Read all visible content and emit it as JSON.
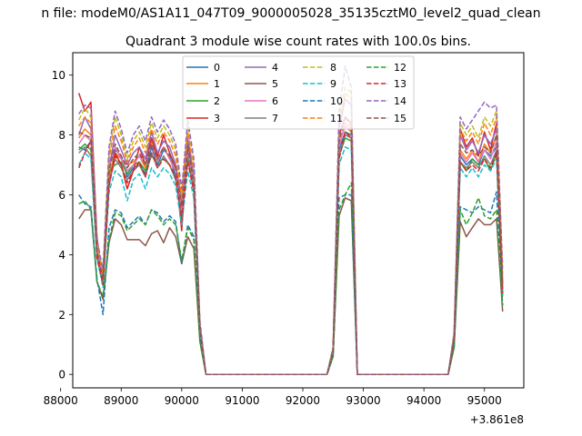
{
  "chart_data": {
    "type": "line",
    "suptitle": "n file: modeM0/AS1A11_047T09_9000005028_35135cztM0_level2_quad_clean",
    "title": "Quadrant 3 module wise count rates with 100.0s bins.",
    "xlabel": "",
    "ylabel": "",
    "x_offset_label": "+3.861e8",
    "xlim": [
      88200,
      95650
    ],
    "ylim": [
      -0.45,
      10.75
    ],
    "xticks": [
      88000,
      89000,
      90000,
      91000,
      92000,
      93000,
      94000,
      95000
    ],
    "xtick_labels": [
      "88000",
      "89000",
      "90000",
      "91000",
      "92000",
      "93000",
      "94000",
      "95000"
    ],
    "yticks": [
      0,
      2,
      4,
      6,
      8,
      10
    ],
    "ytick_labels": [
      "0",
      "2",
      "4",
      "6",
      "8",
      "10"
    ],
    "grid": false,
    "legend": {
      "placement": "upper-center",
      "columns": 4
    },
    "x": [
      88300,
      88400,
      88500,
      88600,
      88700,
      88800,
      88900,
      89000,
      89100,
      89200,
      89300,
      89400,
      89500,
      89600,
      89700,
      89800,
      89900,
      90000,
      90100,
      90200,
      90300,
      90400,
      92400,
      92500,
      92600,
      92700,
      92800,
      92900,
      94400,
      94500,
      94600,
      94700,
      94800,
      94900,
      95000,
      95100,
      95200,
      95300
    ],
    "series": [
      {
        "name": "0",
        "color": "#1f77b4",
        "dash": "solid",
        "values": [
          7.6,
          7.5,
          7.8,
          4.0,
          3.0,
          6.5,
          7.5,
          7.3,
          6.6,
          6.9,
          7.0,
          6.7,
          7.6,
          7.0,
          7.5,
          7.3,
          6.6,
          5.1,
          7.4,
          6.2,
          1.5,
          0.0,
          0.0,
          0.8,
          7.5,
          8.1,
          8.0,
          0.0,
          0.0,
          1.2,
          7.3,
          7.0,
          7.2,
          7.0,
          7.5,
          7.3,
          7.6,
          2.6
        ]
      },
      {
        "name": "1",
        "color": "#ff7f0e",
        "dash": "solid",
        "values": [
          7.9,
          8.2,
          8.0,
          4.2,
          3.1,
          6.6,
          7.4,
          7.2,
          7.0,
          7.1,
          7.3,
          6.9,
          7.8,
          7.2,
          7.6,
          7.2,
          6.8,
          5.6,
          7.6,
          6.5,
          1.6,
          0.0,
          0.0,
          0.8,
          7.7,
          8.3,
          8.1,
          0.0,
          0.0,
          1.2,
          7.5,
          7.2,
          7.5,
          7.1,
          7.7,
          7.4,
          8.0,
          2.9
        ]
      },
      {
        "name": "2",
        "color": "#2ca02c",
        "dash": "solid",
        "values": [
          7.5,
          7.7,
          7.5,
          4.3,
          3.2,
          6.8,
          7.0,
          7.1,
          6.7,
          7.0,
          7.1,
          6.8,
          7.3,
          7.1,
          7.2,
          7.0,
          6.5,
          5.4,
          7.3,
          6.3,
          1.5,
          0.0,
          0.0,
          0.8,
          7.3,
          7.9,
          7.8,
          0.0,
          0.0,
          1.2,
          7.1,
          6.8,
          7.2,
          7.0,
          7.2,
          6.8,
          7.4,
          2.7
        ]
      },
      {
        "name": "3",
        "color": "#d62728",
        "dash": "solid",
        "values": [
          9.4,
          8.8,
          9.1,
          4.6,
          3.0,
          6.3,
          7.4,
          7.0,
          6.2,
          6.8,
          7.6,
          7.0,
          7.9,
          7.3,
          8.0,
          7.4,
          6.9,
          4.8,
          7.7,
          6.5,
          1.5,
          0.0,
          0.0,
          0.8,
          8.0,
          8.6,
          8.4,
          0.0,
          0.0,
          1.3,
          8.2,
          7.6,
          7.9,
          7.3,
          8.1,
          7.5,
          8.4,
          3.0
        ]
      },
      {
        "name": "4",
        "color": "#9467bd",
        "dash": "solid",
        "values": [
          8.0,
          8.6,
          8.2,
          4.1,
          3.3,
          6.9,
          8.0,
          7.5,
          7.0,
          7.4,
          7.6,
          7.2,
          8.1,
          7.4,
          7.8,
          7.6,
          7.0,
          5.8,
          7.9,
          6.6,
          1.6,
          0.0,
          0.0,
          0.8,
          8.2,
          9.2,
          9.0,
          0.0,
          0.0,
          1.3,
          8.0,
          7.5,
          7.8,
          7.4,
          8.0,
          7.7,
          8.2,
          3.1
        ]
      },
      {
        "name": "5",
        "color": "#8c564b",
        "dash": "solid",
        "values": [
          5.2,
          5.5,
          5.5,
          3.1,
          2.5,
          4.4,
          5.2,
          5.0,
          4.5,
          4.5,
          4.5,
          4.3,
          4.7,
          4.8,
          4.4,
          4.9,
          4.6,
          3.7,
          4.6,
          4.2,
          1.1,
          0.0,
          0.0,
          0.6,
          5.3,
          5.9,
          5.8,
          0.0,
          0.0,
          0.9,
          5.1,
          4.6,
          4.9,
          5.2,
          5.0,
          5.0,
          5.2,
          2.1
        ]
      },
      {
        "name": "6",
        "color": "#e377c2",
        "dash": "solid",
        "values": [
          7.7,
          8.0,
          7.8,
          4.2,
          3.2,
          6.9,
          7.6,
          7.2,
          6.8,
          7.0,
          7.3,
          7.0,
          7.7,
          7.1,
          7.6,
          7.2,
          6.8,
          5.5,
          7.5,
          6.4,
          1.6,
          0.0,
          0.0,
          0.8,
          7.6,
          8.4,
          8.2,
          0.0,
          0.0,
          1.2,
          7.4,
          7.1,
          7.4,
          7.1,
          7.5,
          7.2,
          7.8,
          2.8
        ]
      },
      {
        "name": "7",
        "color": "#7f7f7f",
        "dash": "solid",
        "values": [
          7.4,
          7.6,
          7.3,
          4.0,
          3.0,
          6.4,
          7.2,
          6.9,
          6.5,
          6.8,
          7.0,
          6.6,
          7.4,
          6.9,
          7.3,
          7.0,
          6.5,
          5.2,
          7.2,
          6.1,
          1.5,
          0.0,
          0.0,
          0.8,
          7.3,
          8.0,
          7.9,
          0.0,
          0.0,
          1.1,
          7.1,
          6.9,
          7.1,
          6.9,
          7.3,
          7.0,
          7.5,
          2.7
        ]
      },
      {
        "name": "8",
        "color": "#bcbd22",
        "dash": "dashed",
        "values": [
          8.5,
          8.9,
          8.6,
          4.4,
          3.4,
          7.4,
          8.6,
          8.0,
          7.2,
          7.8,
          8.1,
          7.6,
          8.4,
          7.9,
          8.3,
          8.0,
          7.5,
          6.0,
          8.3,
          7.0,
          1.7,
          0.0,
          0.0,
          0.9,
          8.6,
          9.6,
          9.4,
          0.0,
          0.0,
          1.4,
          8.4,
          8.0,
          8.3,
          7.9,
          8.6,
          8.3,
          8.8,
          3.3
        ]
      },
      {
        "name": "9",
        "color": "#17becf",
        "dash": "dashed",
        "values": [
          7.0,
          7.4,
          7.2,
          3.9,
          2.9,
          6.1,
          6.8,
          6.6,
          5.8,
          6.5,
          6.7,
          6.2,
          6.9,
          6.6,
          6.9,
          6.7,
          6.3,
          5.0,
          6.8,
          5.9,
          1.4,
          0.0,
          0.0,
          0.8,
          7.0,
          7.6,
          7.5,
          0.0,
          0.0,
          1.1,
          6.9,
          6.6,
          6.9,
          6.6,
          7.0,
          6.8,
          7.2,
          2.6
        ]
      },
      {
        "name": "10",
        "color": "#1f77b4",
        "dash": "dashed",
        "values": [
          6.0,
          5.7,
          5.6,
          3.2,
          2.0,
          4.9,
          5.5,
          5.4,
          4.9,
          5.1,
          5.3,
          5.0,
          5.5,
          5.4,
          5.1,
          5.3,
          5.1,
          3.7,
          5.0,
          4.6,
          1.2,
          0.0,
          0.0,
          0.6,
          5.9,
          6.0,
          6.0,
          0.0,
          0.0,
          1.0,
          5.6,
          5.5,
          5.4,
          5.6,
          5.5,
          5.4,
          6.1,
          2.3
        ]
      },
      {
        "name": "11",
        "color": "#ff7f0e",
        "dash": "dashed",
        "values": [
          8.3,
          8.6,
          8.4,
          4.3,
          3.3,
          7.2,
          8.3,
          7.8,
          7.1,
          7.6,
          7.9,
          7.4,
          8.2,
          7.7,
          8.1,
          7.8,
          7.3,
          5.9,
          8.1,
          6.8,
          1.7,
          0.0,
          0.0,
          0.9,
          8.4,
          9.4,
          9.2,
          0.0,
          0.0,
          1.3,
          8.2,
          7.8,
          8.1,
          7.7,
          8.4,
          8.0,
          8.6,
          3.6
        ]
      },
      {
        "name": "12",
        "color": "#2ca02c",
        "dash": "dashed",
        "values": [
          5.7,
          5.8,
          5.5,
          3.1,
          2.6,
          4.5,
          5.4,
          5.3,
          4.8,
          5.0,
          5.2,
          5.0,
          5.5,
          5.3,
          5.0,
          5.2,
          5.0,
          3.8,
          4.9,
          4.5,
          1.1,
          0.0,
          0.0,
          0.6,
          5.5,
          6.0,
          6.4,
          0.0,
          0.0,
          0.9,
          5.5,
          5.0,
          5.4,
          5.9,
          5.3,
          5.2,
          5.5,
          2.3
        ]
      },
      {
        "name": "13",
        "color": "#d62728",
        "dash": "dashed",
        "values": [
          6.9,
          7.4,
          7.8,
          3.9,
          3.0,
          6.3,
          7.3,
          7.0,
          6.4,
          6.8,
          7.1,
          6.6,
          7.4,
          6.9,
          7.2,
          7.0,
          6.6,
          5.2,
          7.1,
          6.1,
          1.5,
          0.0,
          0.0,
          0.8,
          7.2,
          8.1,
          7.9,
          0.0,
          0.0,
          1.2,
          7.1,
          6.8,
          7.0,
          6.8,
          7.2,
          6.9,
          7.4,
          2.7
        ]
      },
      {
        "name": "14",
        "color": "#9467bd",
        "dash": "dashed",
        "values": [
          8.7,
          9.0,
          8.9,
          4.5,
          3.5,
          7.6,
          8.8,
          8.2,
          7.4,
          8.0,
          8.3,
          7.8,
          8.6,
          8.1,
          8.5,
          8.2,
          7.7,
          6.2,
          8.5,
          7.2,
          1.8,
          0.0,
          0.0,
          0.9,
          8.8,
          10.3,
          9.6,
          0.0,
          0.0,
          1.4,
          8.6,
          8.2,
          8.5,
          8.8,
          9.1,
          8.9,
          9.0,
          3.4
        ]
      },
      {
        "name": "15",
        "color": "#8c564b",
        "dash": "dashed",
        "values": [
          8.1,
          8.0,
          7.9,
          4.1,
          3.2,
          6.8,
          7.7,
          7.3,
          6.9,
          7.2,
          7.4,
          7.0,
          7.7,
          7.2,
          7.6,
          7.3,
          6.9,
          5.6,
          7.6,
          6.4,
          1.6,
          0.0,
          0.0,
          0.8,
          7.8,
          8.6,
          8.3,
          0.0,
          0.0,
          1.2,
          7.7,
          7.4,
          7.5,
          7.3,
          7.6,
          7.4,
          8.0,
          2.9
        ]
      }
    ]
  }
}
